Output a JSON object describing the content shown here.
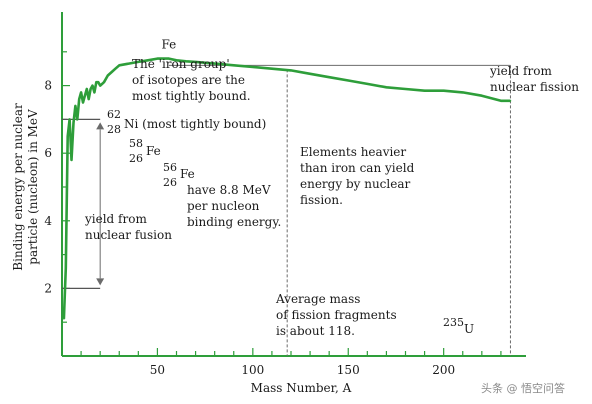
{
  "chart_data": {
    "type": "line",
    "title": "",
    "xlabel": "Mass Number, A",
    "ylabel_lines": [
      "Binding energy per nuclear",
      "particle (nucleon) in MeV"
    ],
    "xlim": [
      0,
      240
    ],
    "ylim": [
      0,
      10
    ],
    "x_ticks": [
      50,
      100,
      150,
      200
    ],
    "y_ticks": [
      2,
      4,
      6,
      8
    ],
    "line_color": "#2e9e3a",
    "axis_color": "#2e9e3a",
    "guide_color": "#6b6b6b",
    "series": [
      {
        "x": [
          1,
          2,
          3,
          4,
          5,
          6,
          7,
          8,
          9,
          10,
          11,
          12,
          13,
          14,
          15,
          16,
          17,
          18,
          19,
          20,
          22,
          24,
          26,
          28,
          30,
          35,
          40,
          45,
          50,
          56,
          60,
          65,
          70,
          80,
          90,
          100,
          110,
          120,
          130,
          140,
          150,
          160,
          170,
          180,
          190,
          200,
          210,
          220,
          230,
          235
        ],
        "y": [
          1.1,
          2.6,
          6.5,
          7.0,
          5.8,
          6.9,
          7.4,
          7.0,
          7.6,
          7.8,
          7.5,
          7.7,
          7.9,
          7.6,
          7.9,
          8.0,
          7.8,
          8.1,
          8.1,
          8.0,
          8.1,
          8.3,
          8.4,
          8.5,
          8.6,
          8.65,
          8.7,
          8.75,
          8.8,
          8.8,
          8.75,
          8.72,
          8.7,
          8.65,
          8.6,
          8.55,
          8.5,
          8.45,
          8.35,
          8.25,
          8.15,
          8.05,
          7.95,
          7.9,
          7.85,
          7.85,
          7.8,
          7.7,
          7.55,
          7.55
        ]
      }
    ],
    "guides": {
      "fusion_level_y": 2,
      "fusion_top_y": 7,
      "fusion_arrow_x": 20,
      "fusion_line_x_end": 20,
      "iron_level_y": 8.6,
      "fission_level_y": 7.55,
      "average_mass_x": 118,
      "u235_x": 235
    },
    "annotations": {
      "fe_top": "Fe",
      "iron_group": [
        "The 'iron group'",
        "of isotopes are the",
        "most tightly bound."
      ],
      "ni62": {
        "mass": "62",
        "z": "28",
        "sym": "Ni",
        "note": "(most tightly bound)"
      },
      "fe58": {
        "mass": "58",
        "z": "26",
        "sym": "Fe"
      },
      "fe56": {
        "mass": "56",
        "z": "26",
        "sym": "Fe"
      },
      "fe56_note": [
        "have 8.8 MeV",
        "per nucleon",
        "binding energy."
      ],
      "fusion": [
        "yield from",
        "nuclear fusion"
      ],
      "fission": [
        "yield from",
        "nuclear fission"
      ],
      "heavier": [
        "Elements heavier",
        "than iron can yield",
        "energy by nuclear",
        "fission."
      ],
      "average": [
        "Average mass",
        "of fission fragments",
        "is about 118."
      ],
      "u235": {
        "mass": "235",
        "sym": "U"
      }
    }
  },
  "watermark": "头条 @ 悟空问答"
}
